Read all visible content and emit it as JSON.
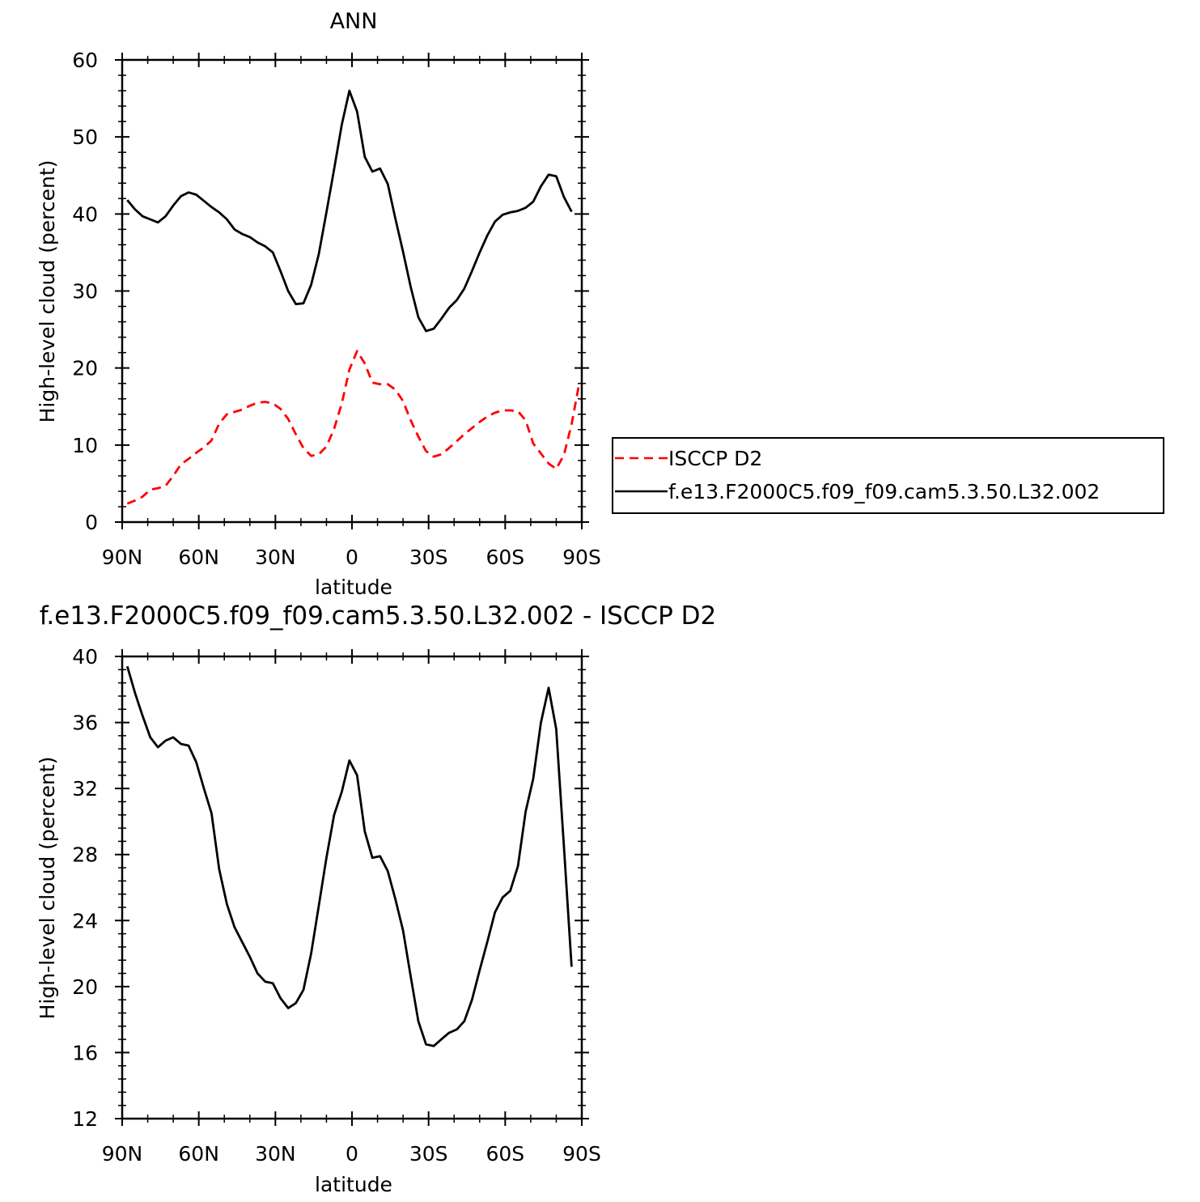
{
  "top_title": "ANN",
  "bottom_title": "f.e13.F2000C5.f09_f09.cam5.3.50.L32.002 - ISCCP D2",
  "legend": {
    "isccp_label": "ISCCP D2",
    "model_label": "f.e13.F2000C5.f09_f09.cam5.3.50.L32.002"
  },
  "chart_data": [
    {
      "type": "line",
      "title": "ANN",
      "xlabel": "latitude",
      "ylabel": "High-level cloud (percent)",
      "xlim": [
        90,
        -90
      ],
      "ylim": [
        0,
        60
      ],
      "x_ticks": [
        90,
        60,
        30,
        0,
        -30,
        -60,
        -90
      ],
      "x_tick_labels": [
        "90N",
        "60N",
        "30N",
        "0",
        "30S",
        "60S",
        "90S"
      ],
      "y_ticks": [
        0,
        10,
        20,
        30,
        40,
        50,
        60
      ],
      "y_tick_labels": [
        "0",
        "10",
        "20",
        "30",
        "40",
        "50",
        "60"
      ],
      "legend_position": "right",
      "series": [
        {
          "name": "ISCCP D2",
          "color": "#ff0000",
          "dash": "dashed",
          "points": [
            [
              88,
              2.4
            ],
            [
              85,
              2.8
            ],
            [
              82,
              3.3
            ],
            [
              79,
              4.2
            ],
            [
              76,
              4.4
            ],
            [
              73,
              4.7
            ],
            [
              70,
              6.0
            ],
            [
              67,
              7.5
            ],
            [
              64,
              8.2
            ],
            [
              61,
              9.0
            ],
            [
              58,
              9.7
            ],
            [
              55,
              10.6
            ],
            [
              52,
              12.8
            ],
            [
              49,
              14.0
            ],
            [
              46,
              14.3
            ],
            [
              43,
              14.6
            ],
            [
              40,
              15.1
            ],
            [
              37,
              15.5
            ],
            [
              34,
              15.6
            ],
            [
              31,
              15.4
            ],
            [
              28,
              14.7
            ],
            [
              25,
              13.4
            ],
            [
              22,
              11.4
            ],
            [
              19,
              9.6
            ],
            [
              16,
              8.6
            ],
            [
              13,
              8.8
            ],
            [
              10,
              9.8
            ],
            [
              7,
              12.1
            ],
            [
              4,
              15.4
            ],
            [
              1,
              19.8
            ],
            [
              -2,
              22.2
            ],
            [
              -5,
              20.6
            ],
            [
              -8,
              18.1
            ],
            [
              -11,
              17.9
            ],
            [
              -14,
              17.9
            ],
            [
              -17,
              17.2
            ],
            [
              -20,
              15.7
            ],
            [
              -23,
              13.2
            ],
            [
              -26,
              11.1
            ],
            [
              -29,
              9.2
            ],
            [
              -32,
              8.5
            ],
            [
              -35,
              8.8
            ],
            [
              -38,
              9.6
            ],
            [
              -41,
              10.5
            ],
            [
              -44,
              11.4
            ],
            [
              -47,
              12.2
            ],
            [
              -50,
              13.0
            ],
            [
              -53,
              13.7
            ],
            [
              -56,
              14.2
            ],
            [
              -59,
              14.5
            ],
            [
              -62,
              14.5
            ],
            [
              -65,
              14.4
            ],
            [
              -68,
              13.2
            ],
            [
              -71,
              10.2
            ],
            [
              -74,
              8.9
            ],
            [
              -77,
              7.6
            ],
            [
              -80,
              6.9
            ],
            [
              -83,
              8.7
            ],
            [
              -86,
              12.7
            ],
            [
              -89,
              18.0
            ]
          ]
        },
        {
          "name": "f.e13.F2000C5.f09_f09.cam5.3.50.L32.002",
          "color": "#000000",
          "dash": "solid",
          "points": [
            [
              88,
              41.8
            ],
            [
              85,
              40.6
            ],
            [
              82,
              39.7
            ],
            [
              79,
              39.3
            ],
            [
              76,
              38.9
            ],
            [
              73,
              39.7
            ],
            [
              70,
              41.1
            ],
            [
              67,
              42.3
            ],
            [
              64,
              42.8
            ],
            [
              61,
              42.5
            ],
            [
              58,
              41.7
            ],
            [
              55,
              40.9
            ],
            [
              52,
              40.2
            ],
            [
              49,
              39.3
            ],
            [
              46,
              38.0
            ],
            [
              43,
              37.4
            ],
            [
              40,
              37.0
            ],
            [
              37,
              36.3
            ],
            [
              34,
              35.8
            ],
            [
              31,
              35.0
            ],
            [
              28,
              32.6
            ],
            [
              25,
              30.0
            ],
            [
              22,
              28.3
            ],
            [
              19,
              28.4
            ],
            [
              16,
              30.8
            ],
            [
              13,
              34.8
            ],
            [
              10,
              40.2
            ],
            [
              7,
              45.8
            ],
            [
              4,
              51.6
            ],
            [
              1,
              56.0
            ],
            [
              -2,
              53.3
            ],
            [
              -5,
              47.4
            ],
            [
              -8,
              45.5
            ],
            [
              -11,
              45.9
            ],
            [
              -14,
              43.9
            ],
            [
              -17,
              39.4
            ],
            [
              -20,
              35.1
            ],
            [
              -23,
              30.5
            ],
            [
              -26,
              26.6
            ],
            [
              -29,
              24.8
            ],
            [
              -32,
              25.1
            ],
            [
              -35,
              26.4
            ],
            [
              -38,
              27.8
            ],
            [
              -41,
              28.8
            ],
            [
              -44,
              30.3
            ],
            [
              -47,
              32.6
            ],
            [
              -50,
              35.0
            ],
            [
              -53,
              37.2
            ],
            [
              -56,
              39.0
            ],
            [
              -59,
              39.9
            ],
            [
              -62,
              40.2
            ],
            [
              -65,
              40.4
            ],
            [
              -68,
              40.8
            ],
            [
              -71,
              41.6
            ],
            [
              -74,
              43.6
            ],
            [
              -77,
              45.1
            ],
            [
              -80,
              44.9
            ],
            [
              -83,
              42.2
            ],
            [
              -86,
              40.3
            ]
          ]
        }
      ]
    },
    {
      "type": "line",
      "title": "f.e13.F2000C5.f09_f09.cam5.3.50.L32.002 - ISCCP D2",
      "xlabel": "latitude",
      "ylabel": "High-level cloud (percent)",
      "xlim": [
        90,
        -90
      ],
      "ylim": [
        12,
        40
      ],
      "x_ticks": [
        90,
        60,
        30,
        0,
        -30,
        -60,
        -90
      ],
      "x_tick_labels": [
        "90N",
        "60N",
        "30N",
        "0",
        "30S",
        "60S",
        "90S"
      ],
      "y_ticks": [
        12,
        16,
        20,
        24,
        28,
        32,
        36,
        40
      ],
      "y_tick_labels": [
        "12",
        "16",
        "20",
        "24",
        "28",
        "32",
        "36",
        "40"
      ],
      "series": [
        {
          "color": "#000000",
          "dash": "solid",
          "points": [
            [
              88,
              39.4
            ],
            [
              85,
              37.8
            ],
            [
              82,
              36.4
            ],
            [
              79,
              35.1
            ],
            [
              76,
              34.5
            ],
            [
              73,
              34.9
            ],
            [
              70,
              35.1
            ],
            [
              67,
              34.7
            ],
            [
              64,
              34.6
            ],
            [
              61,
              33.6
            ],
            [
              58,
              32.0
            ],
            [
              55,
              30.5
            ],
            [
              52,
              27.1
            ],
            [
              49,
              25.0
            ],
            [
              46,
              23.6
            ],
            [
              43,
              22.7
            ],
            [
              40,
              21.8
            ],
            [
              37,
              20.8
            ],
            [
              34,
              20.3
            ],
            [
              31,
              20.2
            ],
            [
              28,
              19.3
            ],
            [
              25,
              18.7
            ],
            [
              22,
              19.0
            ],
            [
              19,
              19.8
            ],
            [
              16,
              22.0
            ],
            [
              13,
              24.9
            ],
            [
              10,
              27.8
            ],
            [
              7,
              30.4
            ],
            [
              4,
              31.8
            ],
            [
              1,
              33.7
            ],
            [
              -2,
              32.8
            ],
            [
              -5,
              29.4
            ],
            [
              -8,
              27.8
            ],
            [
              -11,
              27.9
            ],
            [
              -14,
              27.0
            ],
            [
              -17,
              25.3
            ],
            [
              -20,
              23.4
            ],
            [
              -23,
              20.6
            ],
            [
              -26,
              17.9
            ],
            [
              -29,
              16.5
            ],
            [
              -32,
              16.4
            ],
            [
              -35,
              16.8
            ],
            [
              -38,
              17.2
            ],
            [
              -41,
              17.4
            ],
            [
              -44,
              17.9
            ],
            [
              -47,
              19.2
            ],
            [
              -50,
              21.0
            ],
            [
              -53,
              22.7
            ],
            [
              -56,
              24.5
            ],
            [
              -59,
              25.4
            ],
            [
              -62,
              25.8
            ],
            [
              -65,
              27.3
            ],
            [
              -68,
              30.6
            ],
            [
              -71,
              32.6
            ],
            [
              -74,
              36.0
            ],
            [
              -77,
              38.1
            ],
            [
              -80,
              35.6
            ],
            [
              -83,
              28.5
            ],
            [
              -86,
              21.2
            ]
          ]
        }
      ]
    }
  ]
}
